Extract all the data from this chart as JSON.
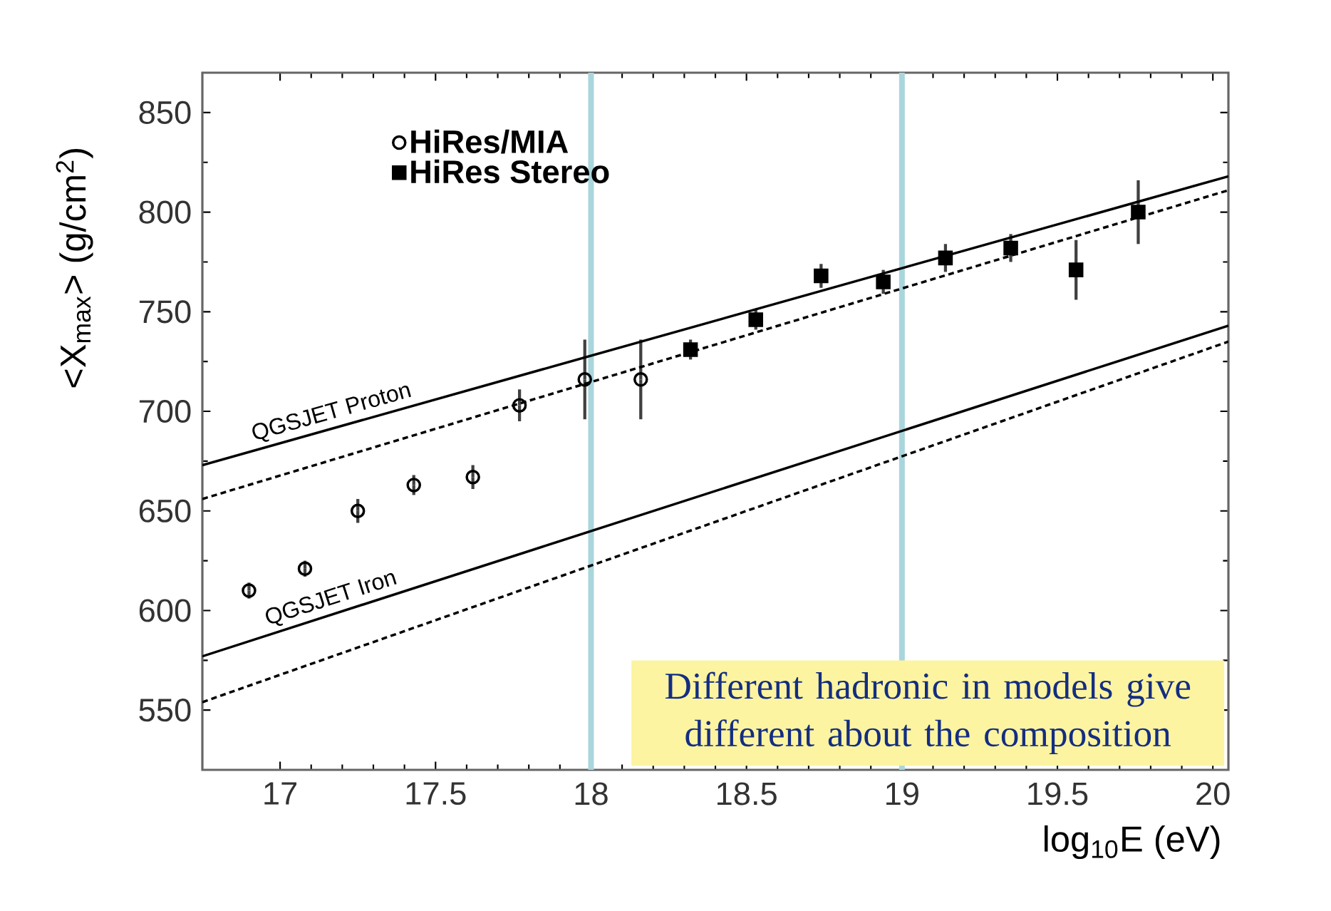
{
  "chart_data": {
    "type": "scatter",
    "xlabel": "log$_{10}$E (eV)",
    "ylabel": "<X$_{max}$> (g/cm$^{2}$)",
    "xlim": [
      16.75,
      20.05
    ],
    "ylim": [
      520,
      870
    ],
    "xticks": [
      17,
      17.5,
      18,
      18.5,
      19,
      19.5,
      20
    ],
    "yticks": [
      550,
      600,
      650,
      700,
      750,
      800,
      850
    ],
    "legend": "top left",
    "series": [
      {
        "name": "HiRes/MIA",
        "marker": "circle",
        "color": "#000000",
        "x": [
          16.9,
          17.08,
          17.25,
          17.43,
          17.62,
          17.77,
          17.98,
          18.16
        ],
        "values": [
          610,
          621,
          650,
          663,
          667,
          703,
          716,
          716
        ],
        "errors": [
          4,
          4,
          6,
          5,
          6,
          8,
          20,
          20
        ]
      },
      {
        "name": "HiRes Stereo",
        "marker": "square",
        "color": "#000000",
        "x": [
          18.32,
          18.53,
          18.74,
          18.94,
          19.14,
          19.35,
          19.56,
          19.76
        ],
        "values": [
          731,
          746,
          768,
          765,
          777,
          782,
          771,
          800
        ],
        "errors": [
          5,
          5,
          6,
          6,
          7,
          7,
          15,
          16
        ]
      },
      {
        "name": "QGSJET Proton",
        "type": "line",
        "line_style": "solid",
        "color": "#000000",
        "x": [
          16.75,
          20.05
        ],
        "values": [
          673,
          818
        ]
      },
      {
        "type": "line",
        "line_style": "dashed",
        "color": "#000000",
        "x": [
          16.75,
          20.05
        ],
        "values": [
          656,
          811
        ]
      },
      {
        "name": "QGSJET Iron",
        "type": "line",
        "line_style": "solid",
        "color": "#000000",
        "x": [
          16.75,
          20.05
        ],
        "values": [
          577,
          743
        ]
      },
      {
        "type": "line",
        "line_style": "dashed",
        "color": "#000000",
        "x": [
          16.75,
          20.05
        ],
        "values": [
          554,
          735
        ]
      }
    ],
    "ref_lines": [
      {
        "axis": "x",
        "value": 18,
        "color": "#a9d6dc"
      },
      {
        "axis": "x",
        "value": 19,
        "color": "#a9d6dc"
      }
    ],
    "annotations": [
      "Different hadronic in models give different about the composition"
    ]
  }
}
